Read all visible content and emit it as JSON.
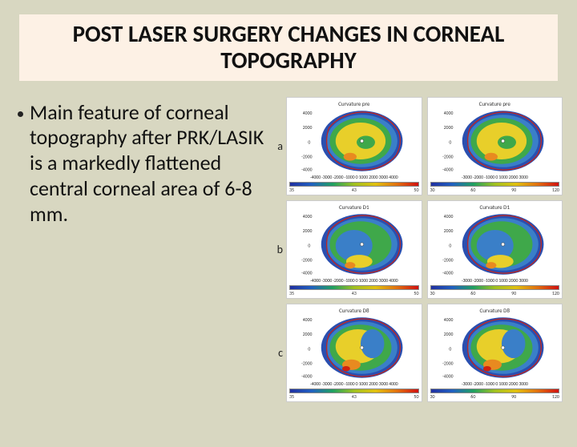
{
  "title": "POST LASER SURGERY CHANGES IN CORNEAL TOPOGRAPHY",
  "bullet": "Main feature of corneal topography after PRK/LASIK is a markedly flattened central corneal area of 6-8 mm.",
  "colors": {
    "title_bg": "#fdf1e5",
    "page_bg": "#d8d7c1"
  },
  "figure": {
    "rows": [
      {
        "label": "a",
        "panels": [
          {
            "title": "Curvature pre",
            "central": "yellow-dominant",
            "x_ticks": "-4000 -3000 -2000 -1000  0  1000 2000 3000 4000",
            "cb_min": "35",
            "cb_mid": "43",
            "cb_max": "50"
          },
          {
            "title": "Curvature pre",
            "central": "yellow-dominant",
            "x_ticks": "-3000 -2000 -1000  0  1000  2000  3000",
            "cb_min": "30",
            "cb_mid2": "60",
            "cb_mid3": "90",
            "cb_max": "120"
          }
        ]
      },
      {
        "label": "b",
        "panels": [
          {
            "title": "Curvature D1",
            "central": "green-blue",
            "x_ticks": "-4000 -3000 -2000 -1000  0  1000 2000 3000 4000",
            "cb_min": "35",
            "cb_mid": "43",
            "cb_max": "50"
          },
          {
            "title": "Curvature D1",
            "central": "green-blue",
            "x_ticks": "-3000 -2000 -1000  0  1000  2000  3000",
            "cb_min": "30",
            "cb_mid2": "60",
            "cb_mid3": "90",
            "cb_max": "120"
          }
        ]
      },
      {
        "label": "c",
        "panels": [
          {
            "title": "Curvature D8",
            "central": "mixed",
            "x_ticks": "-4000 -3000 -2000 -1000  0  1000 2000 3000 4000",
            "cb_min": "35",
            "cb_mid": "43",
            "cb_max": "50"
          },
          {
            "title": "Curvature D8",
            "central": "mixed",
            "x_ticks": "-3000 -2000 -1000  0  1000  2000  3000",
            "cb_min": "30",
            "cb_mid2": "60",
            "cb_mid3": "90",
            "cb_max": "120"
          }
        ]
      }
    ],
    "y_ticks": [
      "4000",
      "2000",
      "0",
      "-2000",
      "-4000"
    ],
    "topo_colors": {
      "outer_ring": "#2a4fb0",
      "mid_blue": "#3a7fc8",
      "green": "#3fa84a",
      "yellow": "#e8cf2a",
      "orange": "#e88a20",
      "red": "#d02010",
      "outline": "#d02010"
    }
  }
}
